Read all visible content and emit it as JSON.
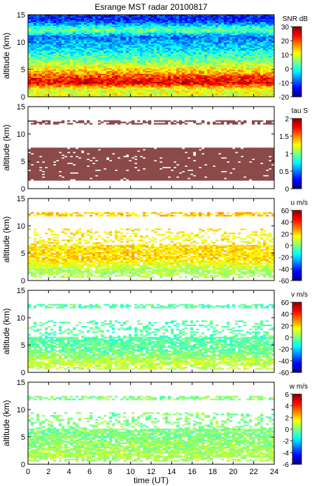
{
  "title": "Esrange MST radar 20100817",
  "x_axis": {
    "label": "time (UT)",
    "ticks": [
      "0",
      "2",
      "4",
      "6",
      "8",
      "10",
      "12",
      "14",
      "16",
      "18",
      "20",
      "22",
      "24"
    ],
    "range": [
      0,
      24
    ]
  },
  "y_axis": {
    "label": "altitude (km)",
    "ticks": [
      "0",
      "5",
      "10",
      "15"
    ],
    "range": [
      0,
      15
    ]
  },
  "chart_data": [
    {
      "type": "heatmap",
      "parameter": "SNR",
      "colorbar": {
        "title": "SNR dB",
        "range": [
          -20,
          30
        ],
        "ticks": [
          "30",
          "20",
          "10",
          "0",
          "-10",
          "-20"
        ]
      },
      "xlim": [
        0,
        24
      ],
      "ylim": [
        0,
        15
      ],
      "coverage": "all altitudes 0-15 km, all times",
      "profile": [
        {
          "altitude_km": 1.5,
          "value": 10
        },
        {
          "altitude_km": 2.5,
          "value": 25
        },
        {
          "altitude_km": 3.5,
          "value": 22
        },
        {
          "altitude_km": 4.5,
          "value": 15
        },
        {
          "altitude_km": 5.5,
          "value": 10
        },
        {
          "altitude_km": 7,
          "value": 3
        },
        {
          "altitude_km": 9,
          "value": -3
        },
        {
          "altitude_km": 11,
          "value": -8
        },
        {
          "altitude_km": 12.2,
          "value": 5
        },
        {
          "altitude_km": 14,
          "value": -12
        }
      ]
    },
    {
      "type": "heatmap",
      "parameter": "tau",
      "colorbar": {
        "title": "tau S",
        "range": [
          0,
          2
        ],
        "ticks": [
          "2",
          "1.5",
          "1",
          "0.5",
          "0"
        ]
      },
      "xlim": [
        0,
        24
      ],
      "ylim": [
        0,
        15
      ],
      "dominant_value": 2,
      "data_layers_km": [
        [
          1.5,
          7.5
        ],
        [
          11.8,
          12.6
        ]
      ]
    },
    {
      "type": "heatmap",
      "parameter": "u",
      "colorbar": {
        "title": "u m/s",
        "range": [
          -60,
          60
        ],
        "ticks": [
          "60",
          "40",
          "20",
          "0",
          "-20",
          "-40",
          "-60"
        ]
      },
      "xlim": [
        0,
        24
      ],
      "ylim": [
        0,
        15
      ],
      "profile": [
        {
          "altitude_km": 2,
          "value": 5
        },
        {
          "altitude_km": 4,
          "value": 20
        },
        {
          "altitude_km": 6,
          "value": 18
        },
        {
          "altitude_km": 8,
          "value": 15
        },
        {
          "altitude_km": 12,
          "value": 22
        }
      ]
    },
    {
      "type": "heatmap",
      "parameter": "v",
      "colorbar": {
        "title": "v m/s",
        "range": [
          -60,
          60
        ],
        "ticks": [
          "60",
          "40",
          "20",
          "0",
          "-20",
          "-40",
          "-60"
        ]
      },
      "xlim": [
        0,
        24
      ],
      "ylim": [
        0,
        15
      ],
      "profile": [
        {
          "altitude_km": 2,
          "value": 8
        },
        {
          "altitude_km": 4,
          "value": -3
        },
        {
          "altitude_km": 6,
          "value": -5
        },
        {
          "altitude_km": 8,
          "value": -5
        },
        {
          "altitude_km": 12,
          "value": -5
        }
      ]
    },
    {
      "type": "heatmap",
      "parameter": "w",
      "colorbar": {
        "title": "w m/s",
        "range": [
          -6,
          6
        ],
        "ticks": [
          "6",
          "4",
          "2",
          "0",
          "-2",
          "-4",
          "-6"
        ]
      },
      "xlim": [
        0,
        24
      ],
      "ylim": [
        0,
        15
      ],
      "profile": [
        {
          "altitude_km": 2,
          "value": 0.5
        },
        {
          "altitude_km": 5,
          "value": 0
        },
        {
          "altitude_km": 12,
          "value": 0
        }
      ]
    }
  ]
}
